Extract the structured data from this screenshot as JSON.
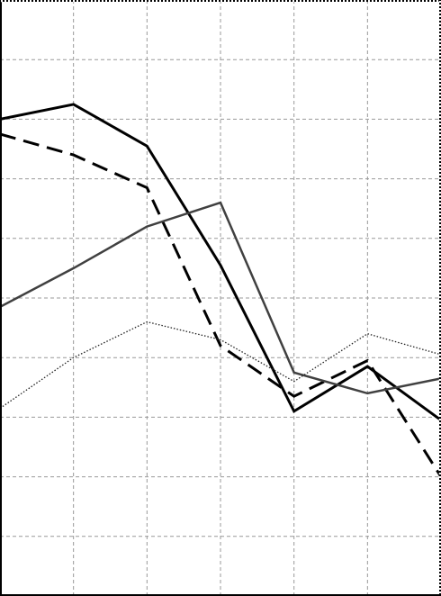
{
  "chart_data": {
    "type": "line",
    "x": [
      0,
      1,
      2,
      3,
      4,
      5,
      6
    ],
    "xlim": [
      0,
      6
    ],
    "ylim": [
      0,
      10
    ],
    "grid": true,
    "series": [
      {
        "values": [
          8.0,
          8.25,
          7.55,
          5.55,
          3.1,
          3.85,
          2.95
        ],
        "color": "#000000",
        "style": "solid-thick"
      },
      {
        "values": [
          7.75,
          7.4,
          6.85,
          4.2,
          3.35,
          3.95,
          2.0
        ],
        "color": "#000000",
        "style": "dashed"
      },
      {
        "values": [
          4.85,
          5.5,
          6.2,
          6.6,
          3.75,
          3.4,
          3.65
        ],
        "color": "#404040",
        "style": "solid-medium"
      },
      {
        "values": [
          3.15,
          4.0,
          4.6,
          4.3,
          3.6,
          4.4,
          4.05
        ],
        "color": "#222222",
        "style": "dotted"
      }
    ]
  }
}
